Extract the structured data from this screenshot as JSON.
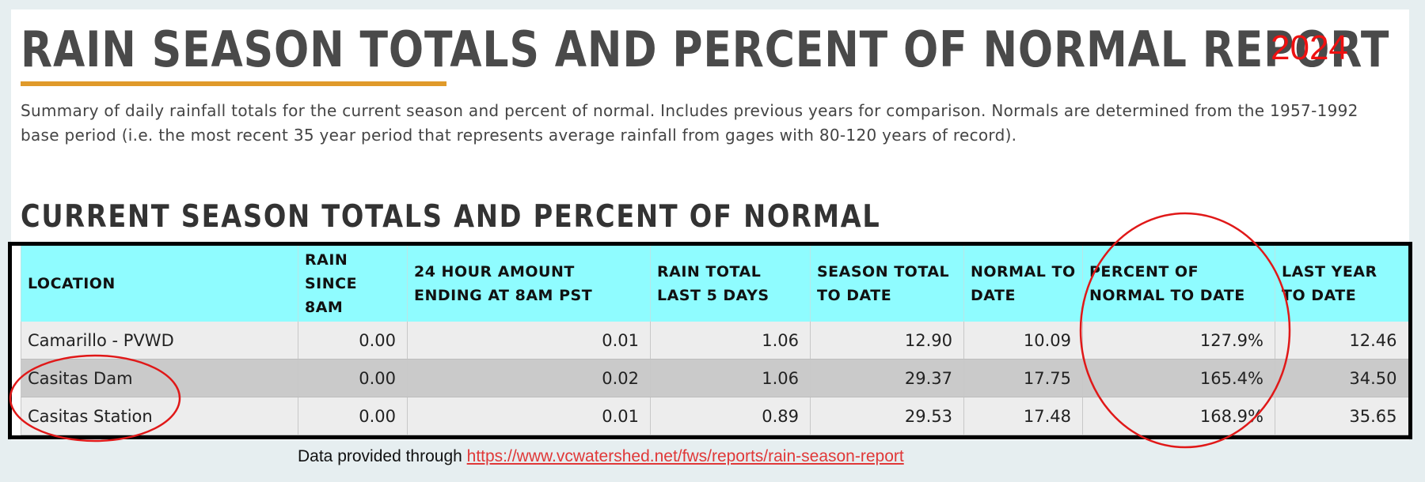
{
  "header": {
    "title": "RAIN SEASON TOTALS AND PERCENT OF NORMAL REPORT",
    "year": "2024",
    "summary": "Summary of daily rainfall totals for the current season and percent of normal. Includes previous years for comparison. Normals are determined from the 1957-1992 base period (i.e. the most recent 35 year period that represents average rainfall from gages with 80-120 years of record)."
  },
  "section": {
    "title": "CURRENT SEASON TOTALS AND PERCENT OF NORMAL"
  },
  "table": {
    "headers": [
      "LOCATION",
      "RAIN SINCE 8AM",
      "24 HOUR AMOUNT ENDING AT 8AM PST",
      "RAIN TOTAL LAST 5 DAYS",
      "SEASON TOTAL TO DATE",
      "NORMAL TO DATE",
      "PERCENT OF NORMAL TO DATE",
      "LAST YEAR TO DATE"
    ],
    "rows": [
      [
        "Camarillo - PVWD",
        "0.00",
        "0.01",
        "1.06",
        "12.90",
        "10.09",
        "127.9%",
        "12.46"
      ],
      [
        "Casitas Dam",
        "0.00",
        "0.02",
        "1.06",
        "29.37",
        "17.75",
        "165.4%",
        "34.50"
      ],
      [
        "Casitas Station",
        "0.00",
        "0.01",
        "0.89",
        "29.53",
        "17.48",
        "168.9%",
        "35.65"
      ]
    ]
  },
  "annotations": {
    "circle_color": "#e01818",
    "box_color": "#000000",
    "underline_color": "#e09a2a"
  },
  "footer": {
    "prefix": "Data provided through",
    "link_text": "https://www.vcwatershed.net/fws/reports/rain-season-report"
  }
}
